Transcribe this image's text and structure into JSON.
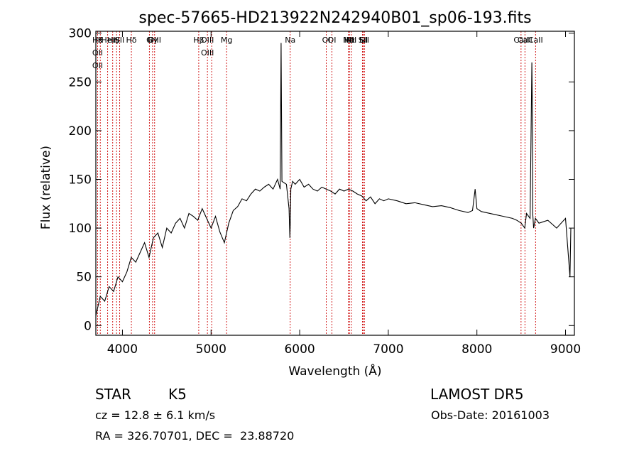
{
  "chart_data": {
    "type": "line",
    "title": "spec-57665-HD213922N242940B01_sp06-193.fits",
    "xlabel": "Wavelength (Å)",
    "ylabel": "Flux (relative)",
    "xlim": [
      3700,
      9100
    ],
    "ylim": [
      -10,
      302
    ],
    "x_ticks": [
      4000,
      5000,
      6000,
      7000,
      8000,
      9000
    ],
    "x_tick_labels": [
      "4000",
      "5000",
      "6000",
      "7000",
      "8000",
      "9000"
    ],
    "y_ticks": [
      0,
      50,
      100,
      150,
      200,
      250,
      300
    ],
    "y_tick_labels": [
      "0",
      "50",
      "100",
      "150",
      "200",
      "250",
      "300"
    ],
    "grid": false,
    "series": [
      {
        "values_wavelength": [
          3700,
          3750,
          3800,
          3850,
          3900,
          3950,
          4000,
          4050,
          4100,
          4150,
          4200,
          4250,
          4300,
          4350,
          4400,
          4450,
          4500,
          4550,
          4600,
          4650,
          4700,
          4750,
          4800,
          4850,
          4900,
          4950,
          5000,
          5050,
          5100,
          5150,
          5200,
          5250,
          5300,
          5350,
          5400,
          5450,
          5500,
          5550,
          5600,
          5650,
          5700,
          5750,
          5780,
          5790,
          5800,
          5850,
          5880,
          5890,
          5895,
          5900,
          5920,
          5950,
          6000,
          6050,
          6100,
          6150,
          6200,
          6250,
          6300,
          6350,
          6400,
          6450,
          6500,
          6550,
          6600,
          6650,
          6700,
          6750,
          6800,
          6850,
          6900,
          6950,
          7000,
          7100,
          7200,
          7300,
          7400,
          7500,
          7600,
          7700,
          7800,
          7900,
          7950,
          7980,
          8000,
          8050,
          8100,
          8200,
          8300,
          8400,
          8450,
          8500,
          8540,
          8560,
          8600,
          8620,
          8625,
          8630,
          8640,
          8660,
          8700,
          8800,
          8900,
          9000,
          9050,
          9060
        ],
        "values_flux": [
          10,
          30,
          25,
          40,
          35,
          50,
          45,
          55,
          70,
          65,
          75,
          85,
          70,
          90,
          95,
          80,
          100,
          95,
          105,
          110,
          100,
          115,
          112,
          108,
          120,
          110,
          100,
          112,
          96,
          85,
          105,
          118,
          122,
          130,
          128,
          135,
          140,
          138,
          142,
          145,
          140,
          150,
          140,
          290,
          148,
          145,
          120,
          90,
          110,
          140,
          148,
          145,
          150,
          142,
          145,
          140,
          138,
          142,
          140,
          138,
          135,
          140,
          138,
          140,
          138,
          135,
          133,
          128,
          132,
          125,
          130,
          128,
          130,
          128,
          125,
          126,
          124,
          122,
          123,
          121,
          118,
          116,
          118,
          140,
          120,
          117,
          116,
          114,
          112,
          110,
          108,
          105,
          100,
          115,
          110,
          270,
          230,
          115,
          100,
          110,
          105,
          108,
          100,
          110,
          50,
          100
        ]
      }
    ],
    "line_markers": [
      {
        "wavelength": 3720,
        "labels": [
          "Hθ",
          "OII",
          "OII"
        ]
      },
      {
        "wavelength": 3750,
        "labels": [
          "K"
        ]
      },
      {
        "wavelength": 3833,
        "labels": [
          "HeI"
        ]
      },
      {
        "wavelength": 3890,
        "labels": [
          "Hη"
        ]
      },
      {
        "wavelength": 3934,
        "labels": [
          "H"
        ]
      },
      {
        "wavelength": 3969,
        "labels": [
          "SII"
        ]
      },
      {
        "wavelength": 4101,
        "labels": [
          "Hδ"
        ]
      },
      {
        "wavelength": 4304,
        "labels": [
          "G"
        ]
      },
      {
        "wavelength": 4340,
        "labels": [
          "Hγ"
        ]
      },
      {
        "wavelength": 4363,
        "labels": [
          "OIII"
        ]
      },
      {
        "wavelength": 4861,
        "labels": [
          "Hβ"
        ]
      },
      {
        "wavelength": 4959,
        "labels": [
          "OIII",
          "OIII"
        ]
      },
      {
        "wavelength": 5007,
        "labels": []
      },
      {
        "wavelength": 5175,
        "labels": [
          "Mg"
        ]
      },
      {
        "wavelength": 5893,
        "labels": [
          "Na"
        ]
      },
      {
        "wavelength": 6300,
        "labels": [
          "OI"
        ]
      },
      {
        "wavelength": 6364,
        "labels": [
          "OI"
        ]
      },
      {
        "wavelength": 6548,
        "labels": [
          "NII"
        ]
      },
      {
        "wavelength": 6563,
        "labels": [
          "Hα"
        ]
      },
      {
        "wavelength": 6583,
        "labels": [
          "NII"
        ]
      },
      {
        "wavelength": 6708,
        "labels": [
          "Li"
        ]
      },
      {
        "wavelength": 6716,
        "labels": [
          "SII"
        ]
      },
      {
        "wavelength": 6731,
        "labels": [
          "SII"
        ]
      },
      {
        "wavelength": 8498,
        "labels": [
          "CaII"
        ]
      },
      {
        "wavelength": 8542,
        "labels": [
          "CaII"
        ]
      },
      {
        "wavelength": 8662,
        "labels": [
          "CaII"
        ]
      }
    ],
    "marker_color": "#cc0000"
  },
  "info": {
    "class": "STAR",
    "subclass": "K5",
    "survey": "LAMOST DR5",
    "cz": "cz = 12.8 ± 6.1 km/s",
    "obs_date": "Obs-Date: 20161003",
    "radec": "RA = 326.70701, DEC =  23.88720"
  }
}
